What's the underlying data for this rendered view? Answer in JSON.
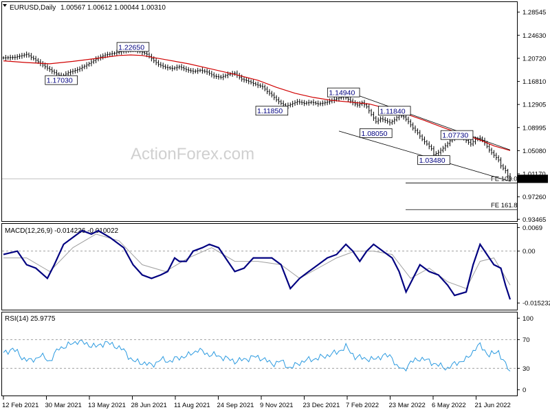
{
  "header": {
    "symbol": "EURUSD,Daily",
    "ohlc": "1.00567 1.00612 1.00044 1.00310"
  },
  "watermark": "ActionForex.com",
  "colors": {
    "candles": "#000000",
    "ma": "#d00000",
    "macd": "#000080",
    "signal": "#a0a0a0",
    "rsi": "#2b9ae0",
    "label_text": "#000080"
  },
  "chart_data": [
    {
      "type": "candlestick",
      "title": "EURUSD,Daily",
      "x_ticks": [
        "12 Feb 2021",
        "30 Mar 2021",
        "13 May 2021",
        "28 Jun 2021",
        "11 Aug 2021",
        "24 Sep 2021",
        "9 Nov 2021",
        "23 Dec 2021",
        "7 Feb 2022",
        "23 Mar 2022",
        "6 May 2022",
        "21 Jun 2022"
      ],
      "y_ticks": [
        "1.28545",
        "1.24630",
        "1.20720",
        "1.16810",
        "1.12905",
        "1.08995",
        "1.05080",
        "1.01170",
        "0.97260",
        "0.93465"
      ],
      "ylim": [
        0.9315,
        1.3025
      ],
      "last_price": "1.00310",
      "price_path": [
        [
          0,
          1.208
        ],
        [
          5,
          1.209
        ],
        [
          10,
          1.214
        ],
        [
          14,
          1.204
        ],
        [
          18,
          1.193
        ],
        [
          22,
          1.183
        ],
        [
          25,
          1.176
        ],
        [
          28,
          1.183
        ],
        [
          32,
          1.188
        ],
        [
          36,
          1.196
        ],
        [
          40,
          1.206
        ],
        [
          44,
          1.213
        ],
        [
          48,
          1.216
        ],
        [
          52,
          1.22
        ],
        [
          56,
          1.223
        ],
        [
          59,
          1.219
        ],
        [
          62,
          1.214
        ],
        [
          65,
          1.203
        ],
        [
          67,
          1.197
        ],
        [
          70,
          1.192
        ],
        [
          73,
          1.19
        ],
        [
          76,
          1.193
        ],
        [
          79,
          1.188
        ],
        [
          82,
          1.185
        ],
        [
          85,
          1.187
        ],
        [
          88,
          1.184
        ],
        [
          91,
          1.177
        ],
        [
          94,
          1.175
        ],
        [
          97,
          1.18
        ],
        [
          100,
          1.182
        ],
        [
          103,
          1.172
        ],
        [
          106,
          1.168
        ],
        [
          109,
          1.163
        ],
        [
          112,
          1.159
        ],
        [
          114,
          1.151
        ],
        [
          116,
          1.145
        ],
        [
          118,
          1.137
        ],
        [
          120,
          1.131
        ],
        [
          122,
          1.126
        ],
        [
          124,
          1.129
        ],
        [
          127,
          1.134
        ],
        [
          130,
          1.131
        ],
        [
          133,
          1.133
        ],
        [
          136,
          1.13
        ],
        [
          139,
          1.132
        ],
        [
          142,
          1.136
        ],
        [
          145,
          1.14
        ],
        [
          147,
          1.143
        ],
        [
          149,
          1.138
        ],
        [
          151,
          1.132
        ],
        [
          153,
          1.128
        ],
        [
          155,
          1.132
        ],
        [
          157,
          1.125
        ],
        [
          159,
          1.112
        ],
        [
          161,
          1.1
        ],
        [
          163,
          1.105
        ],
        [
          165,
          1.102
        ],
        [
          167,
          1.098
        ],
        [
          169,
          1.103
        ],
        [
          171,
          1.111
        ],
        [
          173,
          1.108
        ],
        [
          175,
          1.1
        ],
        [
          177,
          1.089
        ],
        [
          179,
          1.081
        ],
        [
          181,
          1.07
        ],
        [
          183,
          1.062
        ],
        [
          185,
          1.054
        ],
        [
          186,
          1.044
        ],
        [
          188,
          1.048
        ],
        [
          190,
          1.055
        ],
        [
          192,
          1.063
        ],
        [
          194,
          1.072
        ],
        [
          196,
          1.079
        ],
        [
          198,
          1.077
        ],
        [
          200,
          1.068
        ],
        [
          202,
          1.062
        ],
        [
          204,
          1.07
        ],
        [
          206,
          1.072
        ],
        [
          208,
          1.064
        ],
        [
          210,
          1.052
        ],
        [
          212,
          1.043
        ],
        [
          214,
          1.035
        ],
        [
          215,
          1.025
        ],
        [
          217,
          1.017
        ],
        [
          218,
          1.008
        ],
        [
          219,
          1.0031
        ]
      ],
      "ma_path": [
        [
          0,
          1.203
        ],
        [
          10,
          1.2
        ],
        [
          20,
          1.198
        ],
        [
          30,
          1.202
        ],
        [
          40,
          1.207
        ],
        [
          50,
          1.212
        ],
        [
          55,
          1.213
        ],
        [
          60,
          1.212
        ],
        [
          70,
          1.205
        ],
        [
          80,
          1.198
        ],
        [
          90,
          1.189
        ],
        [
          100,
          1.18
        ],
        [
          110,
          1.17
        ],
        [
          118,
          1.158
        ],
        [
          126,
          1.148
        ],
        [
          134,
          1.141
        ],
        [
          142,
          1.136
        ],
        [
          150,
          1.133
        ],
        [
          158,
          1.13
        ],
        [
          166,
          1.122
        ],
        [
          174,
          1.113
        ],
        [
          182,
          1.102
        ],
        [
          190,
          1.09
        ],
        [
          198,
          1.079
        ],
        [
          206,
          1.069
        ],
        [
          212,
          1.059
        ],
        [
          219,
          1.051
        ]
      ],
      "channel_upper": [
        [
          150,
          1.149
        ],
        [
          219,
          1.052
        ]
      ],
      "channel_lower": [
        [
          145,
          1.084
        ],
        [
          219,
          0.999
        ]
      ],
      "annotations": [
        {
          "text": "1.22650",
          "x": 56,
          "y": 1.2265
        },
        {
          "text": "1.17030",
          "x": 25,
          "y": 1.1703
        },
        {
          "text": "1.11850",
          "x": 116,
          "y": 1.1185
        },
        {
          "text": "1.14940",
          "x": 147,
          "y": 1.1494
        },
        {
          "text": "1.11840",
          "x": 169,
          "y": 1.1184
        },
        {
          "text": "1.08050",
          "x": 161,
          "y": 1.0805
        },
        {
          "text": "1.03480",
          "x": 186,
          "y": 1.0348
        },
        {
          "text": "1.07730",
          "x": 196,
          "y": 1.0773
        }
      ],
      "fib_levels": [
        {
          "label": "FE 100.0",
          "value": 0.996
        },
        {
          "label": "FE 161.8",
          "value": 0.951
        }
      ]
    },
    {
      "type": "line",
      "title": "MACD(12,26,9) -0.014226 -0.010022",
      "y_ticks": [
        "0.0069",
        "0.00",
        "-0.015232"
      ],
      "ylim": [
        -0.0172,
        0.008
      ],
      "zero_line": 0,
      "series": [
        {
          "name": "MACD",
          "points": [
            [
              0,
              -0.001
            ],
            [
              6,
              0.0
            ],
            [
              10,
              -0.004
            ],
            [
              14,
              -0.005
            ],
            [
              19,
              -0.008
            ],
            [
              22,
              -0.004
            ],
            [
              26,
              0.002
            ],
            [
              30,
              0.004
            ],
            [
              34,
              0.006
            ],
            [
              38,
              0.005
            ],
            [
              41,
              0.006
            ],
            [
              46,
              0.004
            ],
            [
              52,
              0.001
            ],
            [
              56,
              -0.004
            ],
            [
              60,
              -0.007
            ],
            [
              64,
              -0.008
            ],
            [
              68,
              -0.007
            ],
            [
              71,
              -0.006
            ],
            [
              74,
              -0.002
            ],
            [
              76,
              -0.003
            ],
            [
              79,
              -0.003
            ],
            [
              82,
              0.0
            ],
            [
              86,
              0.001
            ],
            [
              89,
              0.002
            ],
            [
              93,
              0.001
            ],
            [
              97,
              -0.003
            ],
            [
              100,
              -0.006
            ],
            [
              104,
              -0.005
            ],
            [
              108,
              -0.002
            ],
            [
              112,
              -0.002
            ],
            [
              116,
              -0.002
            ],
            [
              120,
              -0.004
            ],
            [
              124,
              -0.011
            ],
            [
              128,
              -0.008
            ],
            [
              132,
              -0.006
            ],
            [
              136,
              -0.004
            ],
            [
              140,
              -0.002
            ],
            [
              144,
              -0.001
            ],
            [
              148,
              0.002
            ],
            [
              151,
              0.0
            ],
            [
              154,
              -0.003
            ],
            [
              157,
              0.0
            ],
            [
              160,
              0.002
            ],
            [
              164,
              0.0
            ],
            [
              168,
              -0.002
            ],
            [
              171,
              -0.006
            ],
            [
              174,
              -0.012
            ],
            [
              177,
              -0.008
            ],
            [
              180,
              -0.004
            ],
            [
              184,
              -0.006
            ],
            [
              188,
              -0.007
            ],
            [
              192,
              -0.01
            ],
            [
              195,
              -0.013
            ],
            [
              200,
              -0.012
            ],
            [
              203,
              -0.004
            ],
            [
              206,
              0.002
            ],
            [
              209,
              -0.001
            ],
            [
              212,
              -0.004
            ],
            [
              215,
              -0.005
            ],
            [
              217,
              -0.01
            ],
            [
              219,
              -0.0142
            ]
          ]
        },
        {
          "name": "Signal",
          "points": [
            [
              0,
              -0.002
            ],
            [
              10,
              -0.002
            ],
            [
              20,
              -0.006
            ],
            [
              30,
              0.001
            ],
            [
              40,
              0.005
            ],
            [
              50,
              0.003
            ],
            [
              60,
              -0.004
            ],
            [
              70,
              -0.006
            ],
            [
              80,
              -0.002
            ],
            [
              90,
              0.001
            ],
            [
              100,
              -0.003
            ],
            [
              110,
              -0.003
            ],
            [
              120,
              -0.004
            ],
            [
              128,
              -0.008
            ],
            [
              136,
              -0.005
            ],
            [
              144,
              -0.002
            ],
            [
              152,
              0.0
            ],
            [
              160,
              0.0
            ],
            [
              168,
              -0.001
            ],
            [
              176,
              -0.008
            ],
            [
              184,
              -0.005
            ],
            [
              192,
              -0.009
            ],
            [
              200,
              -0.011
            ],
            [
              206,
              -0.003
            ],
            [
              212,
              -0.002
            ],
            [
              219,
              -0.01
            ]
          ]
        }
      ]
    },
    {
      "type": "line",
      "title": "RSI(14) 25.9775",
      "y_ticks": [
        "100",
        "70",
        "30",
        "0"
      ],
      "ylim": [
        -8,
        108
      ],
      "levels": [
        70,
        30
      ],
      "series": [
        {
          "name": "RSI",
          "points": [
            [
              0,
              50
            ],
            [
              4,
              58
            ],
            [
              8,
              45
            ],
            [
              12,
              40
            ],
            [
              16,
              48
            ],
            [
              20,
              40
            ],
            [
              24,
              58
            ],
            [
              28,
              62
            ],
            [
              32,
              68
            ],
            [
              36,
              64
            ],
            [
              40,
              60
            ],
            [
              44,
              66
            ],
            [
              48,
              62
            ],
            [
              52,
              55
            ],
            [
              56,
              40
            ],
            [
              60,
              38
            ],
            [
              64,
              34
            ],
            [
              68,
              42
            ],
            [
              72,
              40
            ],
            [
              76,
              45
            ],
            [
              80,
              48
            ],
            [
              84,
              56
            ],
            [
              88,
              50
            ],
            [
              92,
              48
            ],
            [
              96,
              44
            ],
            [
              100,
              40
            ],
            [
              104,
              42
            ],
            [
              108,
              46
            ],
            [
              112,
              44
            ],
            [
              116,
              36
            ],
            [
              120,
              40
            ],
            [
              124,
              30
            ],
            [
              128,
              38
            ],
            [
              132,
              42
            ],
            [
              136,
              44
            ],
            [
              140,
              48
            ],
            [
              144,
              52
            ],
            [
              148,
              60
            ],
            [
              152,
              46
            ],
            [
              156,
              44
            ],
            [
              160,
              42
            ],
            [
              164,
              48
            ],
            [
              168,
              46
            ],
            [
              170,
              32
            ],
            [
              173,
              28
            ],
            [
              176,
              38
            ],
            [
              180,
              44
            ],
            [
              184,
              40
            ],
            [
              188,
              34
            ],
            [
              192,
              30
            ],
            [
              196,
              38
            ],
            [
              200,
              42
            ],
            [
              204,
              58
            ],
            [
              206,
              62
            ],
            [
              210,
              48
            ],
            [
              214,
              54
            ],
            [
              216,
              40
            ],
            [
              219,
              26
            ]
          ]
        }
      ]
    }
  ]
}
